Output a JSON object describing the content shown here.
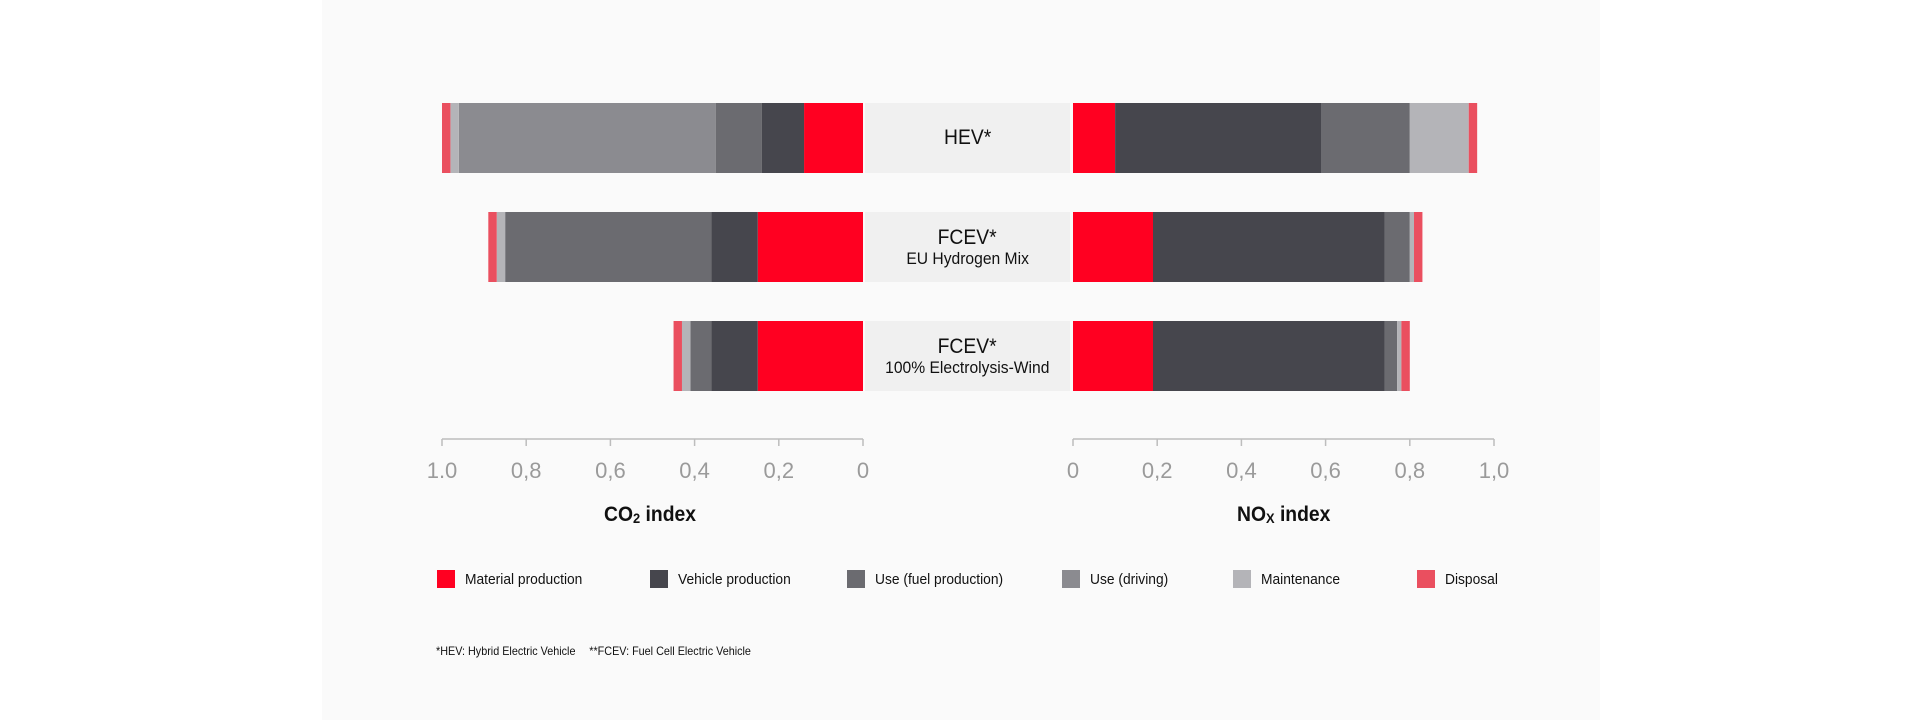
{
  "colors": {
    "Material production": "#ff0021",
    "Vehicle production": "#46464d",
    "Use (fuel production)": "#6b6b70",
    "Use (driving)": "#8b8b90",
    "Maintenance": "#b4b4b8",
    "Disposal": "#ea4f5f",
    "axis": "#bdbdbd",
    "tick_label": "#9a9a9a"
  },
  "legend": [
    {
      "label": "Material production"
    },
    {
      "label": "Vehicle production"
    },
    {
      "label": "Use (fuel production)"
    },
    {
      "label": "Use (driving)"
    },
    {
      "label": "Maintenance"
    },
    {
      "label": "Disposal"
    }
  ],
  "footnote": {
    "hev": "*HEV: Hybrid Electric Vehicle",
    "fcev": "**FCEV: Fuel Cell Electric Vehicle"
  },
  "chart_data": [
    {
      "type": "bar",
      "orientation": "horizontal",
      "stacked": true,
      "direction": "leftward",
      "title": "",
      "xlabel_main": "CO",
      "xlabel_sub": "2",
      "xlabel_suffix": " index",
      "xlim": [
        0,
        1
      ],
      "ticks": [
        1.0,
        0.8,
        0.6,
        0.4,
        0.2,
        0
      ],
      "tick_labels": [
        "1.0",
        "0,8",
        "0,6",
        "0,4",
        "0,2",
        "0"
      ],
      "categories": [
        {
          "name": "HEV*",
          "sub": ""
        },
        {
          "name": "FCEV*",
          "sub": "EU Hydrogen Mix"
        },
        {
          "name": "FCEV*",
          "sub": "100% Electrolysis-Wind"
        }
      ],
      "series": [
        {
          "name": "Material production",
          "values": [
            0.14,
            0.25,
            0.25
          ]
        },
        {
          "name": "Vehicle production",
          "values": [
            0.1,
            0.11,
            0.11
          ]
        },
        {
          "name": "Use (fuel production)",
          "values": [
            0.11,
            0.49,
            0.05
          ]
        },
        {
          "name": "Use (driving)",
          "values": [
            0.61,
            0.0,
            0.0
          ]
        },
        {
          "name": "Maintenance",
          "values": [
            0.02,
            0.02,
            0.02
          ]
        },
        {
          "name": "Disposal",
          "values": [
            0.02,
            0.02,
            0.02
          ]
        }
      ]
    },
    {
      "type": "bar",
      "orientation": "horizontal",
      "stacked": true,
      "direction": "rightward",
      "title": "",
      "xlabel_main": "NO",
      "xlabel_sub": "X",
      "xlabel_suffix": " index",
      "xlim": [
        0,
        1
      ],
      "ticks": [
        0,
        0.2,
        0.4,
        0.6,
        0.8,
        1.0
      ],
      "tick_labels": [
        "0",
        "0,2",
        "0,4",
        "0,6",
        "0,8",
        "1,0"
      ],
      "categories": [
        {
          "name": "HEV*",
          "sub": ""
        },
        {
          "name": "FCEV*",
          "sub": "EU Hydrogen Mix"
        },
        {
          "name": "FCEV*",
          "sub": "100% Electrolysis-Wind"
        }
      ],
      "series": [
        {
          "name": "Material production",
          "values": [
            0.1,
            0.19,
            0.19
          ]
        },
        {
          "name": "Vehicle production",
          "values": [
            0.49,
            0.55,
            0.55
          ]
        },
        {
          "name": "Use (fuel production)",
          "values": [
            0.21,
            0.06,
            0.03
          ]
        },
        {
          "name": "Use (driving)",
          "values": [
            0.0,
            0.0,
            0.0
          ]
        },
        {
          "name": "Maintenance",
          "values": [
            0.14,
            0.01,
            0.01
          ]
        },
        {
          "name": "Disposal",
          "values": [
            0.02,
            0.02,
            0.02
          ]
        }
      ]
    }
  ]
}
